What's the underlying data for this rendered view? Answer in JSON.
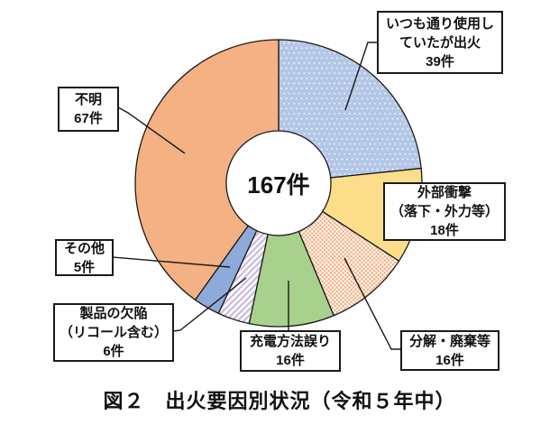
{
  "figure": {
    "caption": "図２　出火要因別状況（令和５年中）",
    "center_total_label": "167件"
  },
  "chart_data": {
    "type": "pie",
    "variant": "donut",
    "title": "図２　出火要因別状況（令和５年中）",
    "total": 167,
    "unit": "件",
    "center_label": "167件",
    "start_angle_deg": 0,
    "direction": "clockwise",
    "outline_color": "#1a1a1a",
    "segments": [
      {
        "label": "いつも通り使用していたが出火",
        "value": 39,
        "color": "#b4c7e7",
        "pattern": "dots",
        "pattern_color": "#ffffff"
      },
      {
        "label": "外部衝撃（落下・外力等）",
        "value": 18,
        "color": "#fbdd8a",
        "pattern": "solid"
      },
      {
        "label": "分解・廃棄等",
        "value": 16,
        "color": "#f6ad7d",
        "pattern": "checker",
        "pattern_base": "#ffffff"
      },
      {
        "label": "充電方法誤り",
        "value": 16,
        "color": "#a9d18e",
        "pattern": "solid"
      },
      {
        "label": "製品の欠陥（リコール含む）",
        "value": 6,
        "color": "#cbbcde",
        "pattern": "diagonal-stripes",
        "pattern_base": "#ffffff"
      },
      {
        "label": "その他",
        "value": 5,
        "color": "#8eaadb",
        "pattern": "solid"
      },
      {
        "label": "不明",
        "value": 67,
        "color": "#f4b183",
        "pattern": "solid"
      }
    ]
  },
  "callouts": {
    "usual": {
      "l1": "いつも通り使用し",
      "l2": "ていたが出火",
      "l3": "39件"
    },
    "impact": {
      "l1": "外部衝撃",
      "l2": "（落下・外力等）",
      "l3": "18件"
    },
    "disassembly": {
      "l1": "分解・廃棄等",
      "l2": "16件"
    },
    "charging": {
      "l1": "充電方法誤り",
      "l2": "16件"
    },
    "defect": {
      "l1": "製品の欠陥",
      "l2": "（リコール含む）",
      "l3": "6件"
    },
    "other": {
      "l1": "その他",
      "l2": "5件"
    },
    "unknown": {
      "l1": "不明",
      "l2": "67件"
    }
  }
}
